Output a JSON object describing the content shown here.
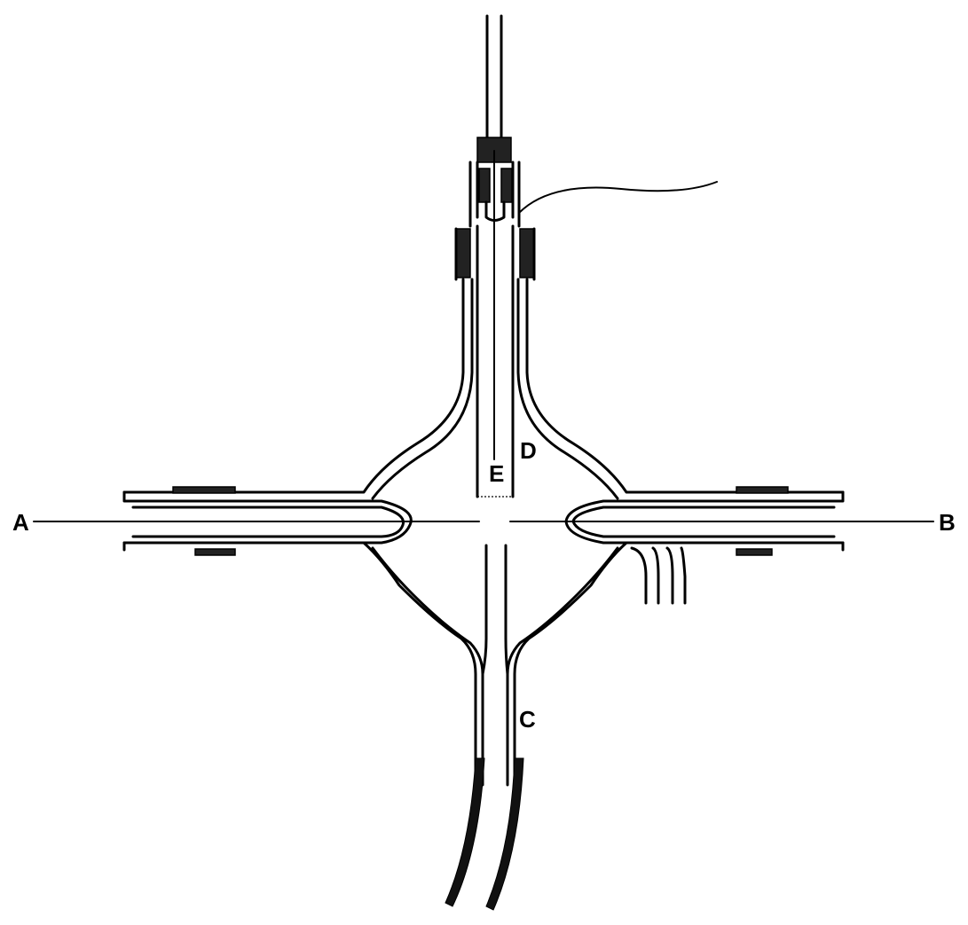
{
  "diagram": {
    "labels": {
      "a": "A",
      "b": "B",
      "c": "C",
      "d": "D",
      "e": "E"
    }
  }
}
